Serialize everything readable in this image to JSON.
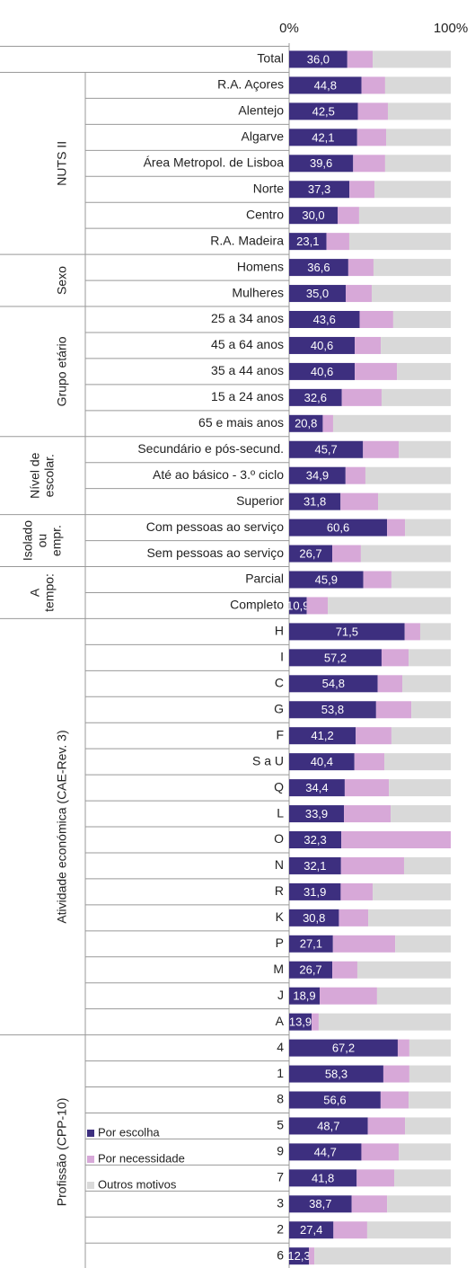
{
  "chart_data": {
    "type": "stacked-barh",
    "categories": [
      "Total",
      "R.A. Açores",
      "Alentejo",
      "Algarve",
      "Área Metropol. de Lisboa",
      "Norte",
      "Centro",
      "R.A. Madeira",
      "Homens",
      "Mulheres",
      "25 a 34 anos",
      "45 a 64 anos",
      "35 a 44 anos",
      "15 a 24 anos",
      "65 e mais anos",
      "Secundário e pós-secund.",
      "Até ao básico - 3.º ciclo",
      "Superior",
      "Com pessoas ao serviço",
      "Sem pessoas ao serviço",
      "Parcial",
      "Completo",
      "H",
      "I",
      "C",
      "G",
      "F",
      "S a U",
      "Q",
      "L",
      "O",
      "N",
      "R",
      "K",
      "P",
      "M",
      "J",
      "A",
      "4",
      "1",
      "8",
      "5",
      "9",
      "7",
      "3",
      "2",
      "6"
    ],
    "groups": [
      [
        "NUTS II"
      ],
      [
        "Sexo"
      ],
      [
        "Grupo etário"
      ],
      [
        "Nível de",
        "escolar."
      ],
      [
        "Isolado",
        "ou",
        "empr."
      ],
      [
        "A",
        "tempo:"
      ],
      [
        "Atividade económica (CAE-Rev. 3)"
      ],
      [
        "Profissão (CPP-10)"
      ]
    ],
    "series": [
      {
        "name": "Por escolha",
        "color": "#3d2f7f",
        "values": [
          36.0,
          44.8,
          42.5,
          42.1,
          39.6,
          37.3,
          30.0,
          23.1,
          36.6,
          35.0,
          43.6,
          40.6,
          40.6,
          32.6,
          20.8,
          45.7,
          34.9,
          31.8,
          60.6,
          26.7,
          45.9,
          10.9,
          71.5,
          57.2,
          54.8,
          53.8,
          41.2,
          40.4,
          34.4,
          33.9,
          32.3,
          32.1,
          31.9,
          30.8,
          27.1,
          26.7,
          18.9,
          13.9,
          67.2,
          58.3,
          56.6,
          48.7,
          44.7,
          41.8,
          38.7,
          27.4,
          12.3
        ],
        "value_labels": [
          "36,0",
          "44,8",
          "42,5",
          "42,1",
          "39,6",
          "37,3",
          "30,0",
          "23,1",
          "36,6",
          "35,0",
          "43,6",
          "40,6",
          "40,6",
          "32,6",
          "20,8",
          "45,7",
          "34,9",
          "31,8",
          "60,6",
          "26,7",
          "45,9",
          "10,9",
          "71,5",
          "57,2",
          "54,8",
          "53,8",
          "41,2",
          "40,4",
          "34,4",
          "33,9",
          "32,3",
          "32,1",
          "31,9",
          "30,8",
          "27,1",
          "26,7",
          "18,9",
          "13,9",
          "67,2",
          "58,3",
          "56,6",
          "48,7",
          "44,7",
          "41,8",
          "38,7",
          "27,4",
          "12,3"
        ]
      },
      {
        "name": "Por necessidade",
        "color": "#d7a8d8",
        "values": [
          15.7,
          14.6,
          18.6,
          17.9,
          19.8,
          15.5,
          13.3,
          14.1,
          15.6,
          16.1,
          20.8,
          16.1,
          26.1,
          24.6,
          6.4,
          22.1,
          12.3,
          23.2,
          11.1,
          17.7,
          17.4,
          13.0,
          9.6,
          16.7,
          15.2,
          21.8,
          22.1,
          18.5,
          27.3,
          28.9,
          67.7,
          39.0,
          19.8,
          18.1,
          38.5,
          15.5,
          35.5,
          4.4,
          7.2,
          16.1,
          17.3,
          23.0,
          23.1,
          23.2,
          21.9,
          20.9,
          3.3
        ]
      },
      {
        "name": "Outros motivos",
        "color": "#d9d9d9",
        "values": [
          48.3,
          40.6,
          38.9,
          40.0,
          40.6,
          47.2,
          56.7,
          62.8,
          47.8,
          48.9,
          35.6,
          43.3,
          33.3,
          42.8,
          72.8,
          32.2,
          52.8,
          45.0,
          28.3,
          55.6,
          36.7,
          76.1,
          18.9,
          26.1,
          30.0,
          24.4,
          36.7,
          41.1,
          38.3,
          37.2,
          0,
          28.9,
          48.3,
          51.1,
          34.4,
          57.8,
          45.6,
          81.7,
          25.6,
          25.6,
          26.1,
          28.3,
          32.2,
          35.0,
          39.4,
          51.7,
          84.4
        ]
      }
    ],
    "xlim": [
      0,
      100
    ],
    "xticks": [
      {
        "value": 0,
        "label": "0%"
      },
      {
        "value": 100,
        "label": "100%"
      }
    ]
  }
}
